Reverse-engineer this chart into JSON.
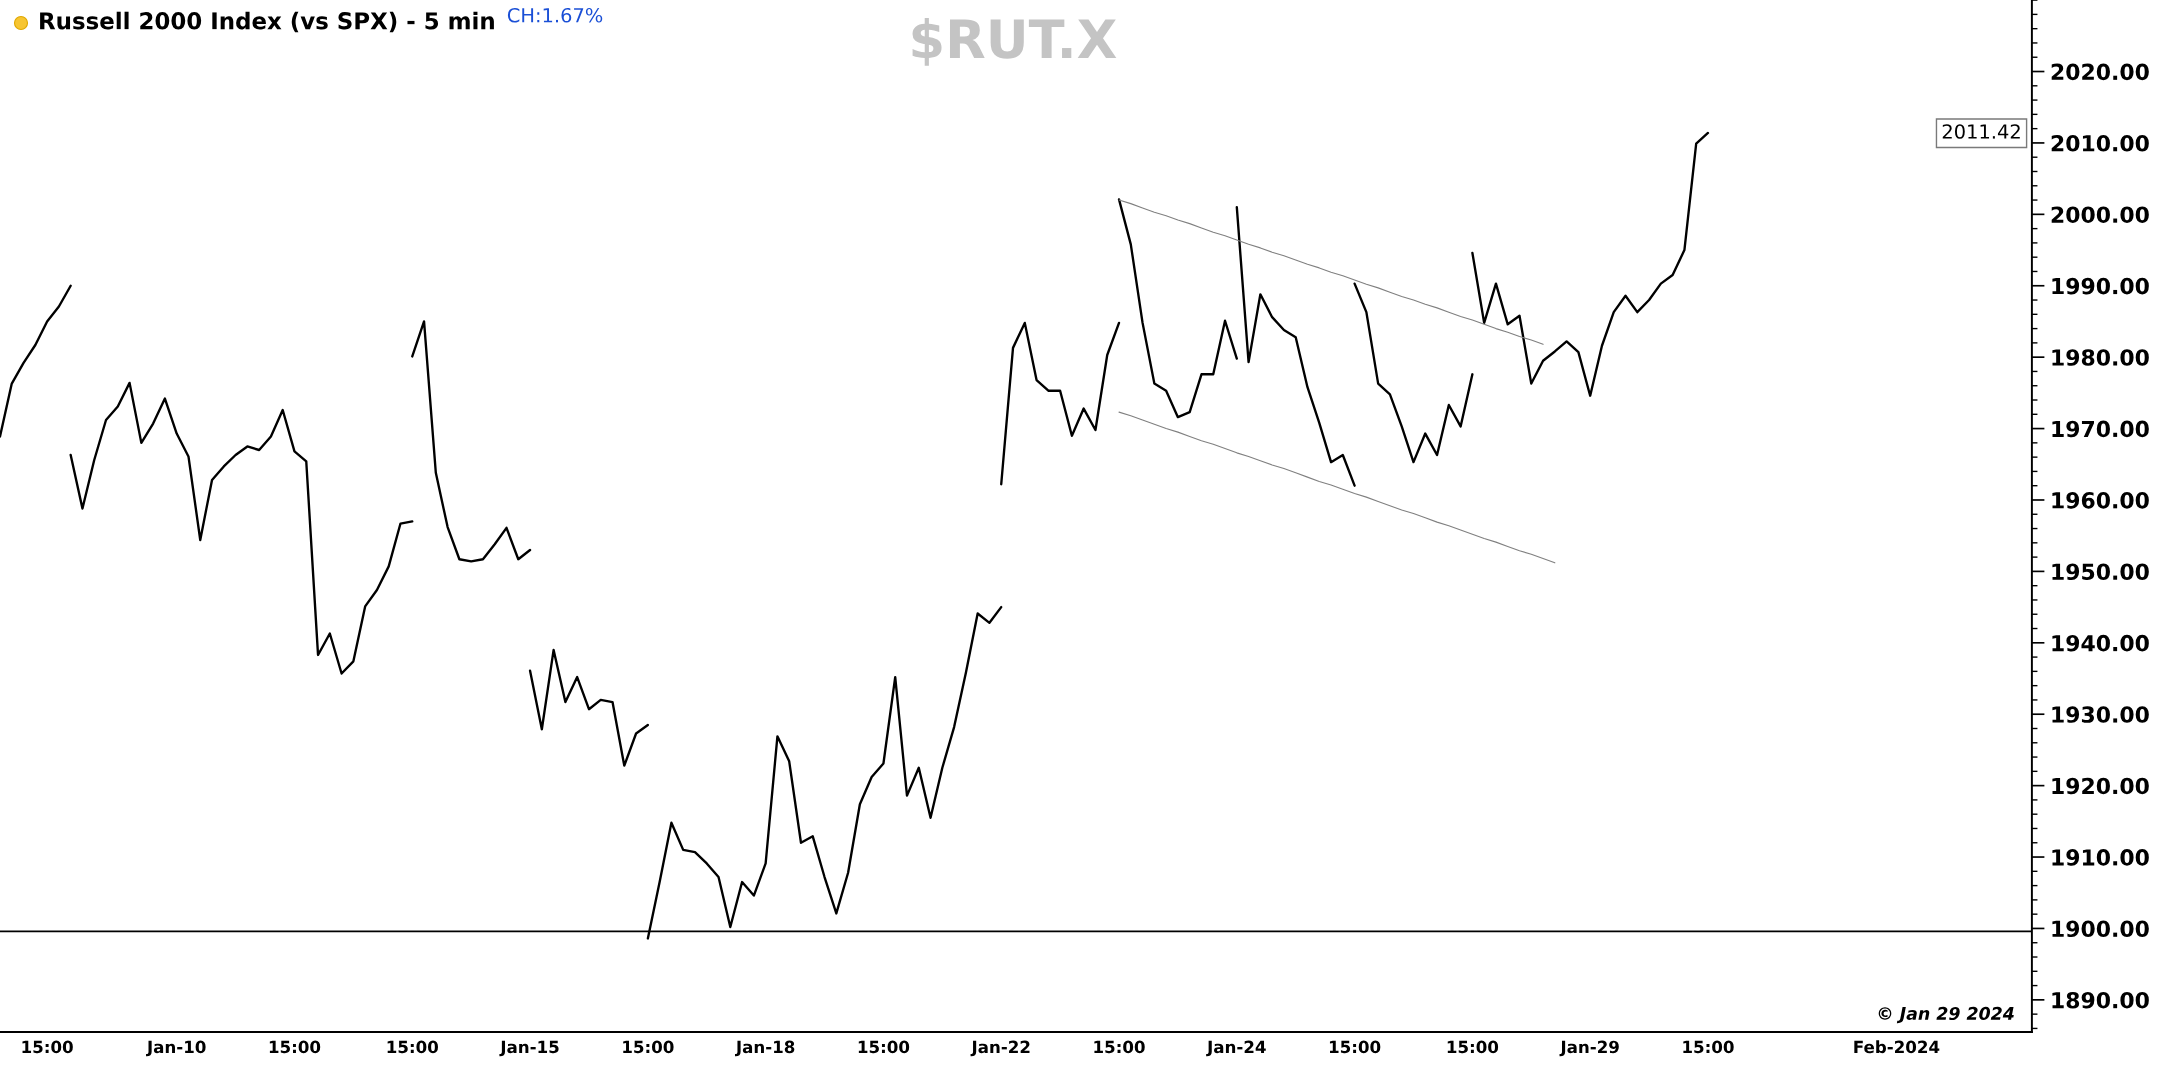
{
  "chart_data": {
    "type": "line",
    "title": "$RUT.X",
    "subtitle": "Russell 2000 Index (vs SPX) - 5 min",
    "annotations": [
      "CH:1.67%",
      "© Jan 29 2024",
      "2011.42"
    ],
    "categories": [
      null,
      null,
      null,
      null,
      "15:00",
      null,
      null,
      null,
      null,
      null,
      null,
      null,
      null,
      null,
      null,
      "Jan-10",
      null,
      null,
      null,
      null,
      null,
      null,
      null,
      null,
      null,
      "15:00",
      null,
      null,
      null,
      null,
      null,
      null,
      null,
      null,
      null,
      "15:00",
      null,
      null,
      null,
      null,
      null,
      null,
      null,
      null,
      null,
      "Jan-15",
      null,
      null,
      null,
      null,
      null,
      null,
      null,
      null,
      null,
      "15:00",
      null,
      null,
      null,
      null,
      null,
      null,
      null,
      null,
      null,
      "Jan-18",
      null,
      null,
      null,
      null,
      null,
      null,
      null,
      null,
      null,
      "15:00",
      null,
      null,
      null,
      null,
      null,
      null,
      null,
      null,
      null,
      "Jan-22",
      null,
      null,
      null,
      null,
      null,
      null,
      null,
      null,
      null,
      "15:00",
      null,
      null,
      null,
      null,
      null,
      null,
      null,
      null,
      null,
      "Jan-24",
      null,
      null,
      null,
      null,
      null,
      null,
      null,
      null,
      null,
      "15:00",
      null,
      null,
      null,
      null,
      null,
      null,
      null,
      null,
      null,
      "15:00",
      null,
      null,
      null,
      null,
      null,
      null,
      null,
      null,
      null,
      "Jan-29",
      null,
      null,
      null,
      null,
      null,
      null,
      null,
      null,
      null,
      "15:00",
      null,
      null,
      null,
      null,
      null,
      null,
      null,
      null,
      null,
      null,
      null,
      null,
      null,
      null,
      null,
      "Feb-2024",
      null,
      null,
      null,
      null,
      null,
      null,
      null,
      null,
      null,
      null,
      null
    ],
    "series": [
      {
        "color": "#000000",
        "values": [
          1968.9,
          1976.3,
          1979.2,
          1981.7,
          1985.0,
          1987.1,
          1990.0,
          null,
          null,
          null,
          null,
          null,
          null,
          null,
          null,
          null,
          null,
          null,
          null,
          null,
          null,
          null,
          null,
          null,
          null,
          null,
          null,
          null,
          null,
          null,
          null,
          null,
          null,
          null,
          null,
          1980.1,
          1985.0,
          1963.8,
          1956.2,
          1951.7,
          1951.4,
          1951.7,
          1953.8,
          1956.1,
          1951.7,
          1953.0,
          null,
          null,
          null,
          null,
          null,
          null,
          null,
          null,
          null,
          1898.6,
          1906.5,
          1914.8,
          1911.0,
          1910.7,
          1909.1,
          1907.2,
          1900.2,
          1906.5,
          1904.6,
          1909.1,
          1926.9,
          1923.4,
          1912.0,
          1912.9,
          1907.2,
          1902.1,
          1907.8,
          1917.4,
          1921.2,
          1923.1,
          1935.2,
          1918.6,
          1922.5,
          1915.5,
          1922.5,
          1928.2,
          1935.8,
          1944.1,
          1942.8,
          1945.0,
          null,
          null,
          null,
          null,
          null,
          null,
          null,
          null,
          null,
          2002.1,
          1995.8,
          1984.8,
          1976.3,
          1975.3,
          1971.6,
          1972.3,
          1977.6,
          1977.6,
          1985.1,
          1979.8,
          null,
          null,
          null,
          null,
          null,
          null,
          null,
          null,
          null,
          1990.3,
          1986.3,
          1976.3,
          1974.8,
          1970.3,
          1965.3,
          1969.3,
          1966.3,
          1973.3,
          1970.3,
          1977.6,
          null,
          null,
          null,
          null,
          null,
          null,
          null,
          null,
          null,
          null,
          null,
          null,
          null,
          null,
          null,
          null,
          null,
          null,
          null,
          null,
          null,
          null,
          null,
          null,
          null,
          null,
          null,
          null,
          null,
          null,
          null,
          null,
          null,
          null,
          null,
          null,
          null,
          null,
          null,
          null,
          null,
          null,
          null,
          null,
          null,
          null,
          null
        ]
      },
      {
        "color": "#000000",
        "values": [
          null,
          null,
          null,
          null,
          null,
          null,
          1966.3,
          1958.8,
          1965.6,
          1971.2,
          1973.1,
          1976.4,
          1968.0,
          1970.7,
          1974.2,
          1969.3,
          1966.1,
          1954.4,
          1962.8,
          1964.7,
          1966.3,
          1967.5,
          1967.0,
          1968.9,
          1972.6,
          1966.8,
          1965.4,
          1938.3,
          1941.3,
          1935.7,
          1937.4,
          1945.1,
          1947.4,
          1950.7,
          1956.7,
          1957.0,
          null,
          null,
          null,
          null,
          null,
          null,
          null,
          null,
          null,
          1936.1,
          1927.9,
          1939.0,
          1931.7,
          1935.2,
          1930.7,
          1932.0,
          1931.7,
          1922.8,
          1927.3,
          1928.5,
          null,
          null,
          null,
          null,
          null,
          null,
          null,
          null,
          null,
          null,
          null,
          null,
          null,
          null,
          null,
          null,
          null,
          null,
          null,
          null,
          null,
          null,
          null,
          null,
          null,
          null,
          null,
          null,
          null,
          1962.2,
          1981.3,
          1984.8,
          1976.8,
          1975.3,
          1975.3,
          1969.0,
          1972.8,
          1969.8,
          1980.3,
          1984.8,
          null,
          null,
          null,
          null,
          null,
          null,
          null,
          null,
          null,
          2001.0,
          1979.3,
          1988.8,
          1985.6,
          1983.8,
          1982.8,
          1975.8,
          1970.8,
          1965.3,
          1966.3,
          1962.0,
          null,
          null,
          null,
          null,
          null,
          null,
          null,
          null,
          null,
          1994.6,
          1984.8,
          1990.3,
          1984.6,
          1985.8,
          1976.3,
          1979.5,
          1980.8,
          1982.2,
          1980.7,
          1974.6,
          1981.6,
          1986.3,
          1988.6,
          1986.3,
          1988.0,
          1990.3,
          1991.5,
          1995.0,
          2009.9,
          2011.4,
          null,
          null,
          null,
          null,
          null,
          null,
          null,
          null,
          null,
          null,
          null,
          null,
          null,
          null,
          null,
          null,
          null,
          null,
          null,
          null,
          null,
          null,
          null,
          null,
          null,
          null,
          null
        ]
      },
      {
        "color": "#808080",
        "values": [
          null,
          null,
          null,
          null,
          null,
          null,
          null,
          null,
          null,
          null,
          null,
          null,
          null,
          null,
          null,
          null,
          null,
          null,
          null,
          null,
          null,
          null,
          null,
          null,
          null,
          null,
          null,
          null,
          null,
          null,
          null,
          null,
          null,
          null,
          null,
          null,
          null,
          null,
          null,
          null,
          null,
          null,
          null,
          null,
          null,
          null,
          null,
          null,
          null,
          null,
          null,
          null,
          null,
          null,
          null,
          null,
          null,
          null,
          null,
          null,
          null,
          null,
          null,
          null,
          null,
          null,
          null,
          null,
          null,
          null,
          null,
          null,
          null,
          null,
          null,
          null,
          null,
          null,
          null,
          null,
          null,
          null,
          null,
          null,
          null,
          null,
          null,
          null,
          null,
          null,
          null,
          null,
          null,
          null,
          null,
          2002.0,
          2001.5,
          2000.9,
          2000.3,
          1999.8,
          1999.2,
          1998.7,
          1998.1,
          1997.5,
          1997.0,
          1996.4,
          1995.8,
          1995.3,
          1994.7,
          1994.2,
          1993.6,
          1993.0,
          1992.5,
          1991.9,
          1991.4,
          1990.8,
          1990.2,
          1989.7,
          1989.1,
          1988.5,
          1988.0,
          1987.4,
          1986.9,
          1986.3,
          1985.7,
          1985.2,
          1984.6,
          1984.0,
          1983.5,
          1982.9,
          1982.4,
          1981.8,
          null,
          null,
          null,
          null,
          null,
          null,
          null,
          null,
          null,
          null,
          null,
          null,
          null,
          null,
          null,
          null,
          null,
          null,
          null,
          null,
          null,
          null,
          null,
          null,
          null,
          null,
          null,
          null,
          null,
          null,
          null,
          null,
          null,
          null,
          null,
          null,
          null,
          null,
          null,
          null,
          null
        ]
      },
      {
        "color": "#808080",
        "values": [
          null,
          null,
          null,
          null,
          null,
          null,
          null,
          null,
          null,
          null,
          null,
          null,
          null,
          null,
          null,
          null,
          null,
          null,
          null,
          null,
          null,
          null,
          null,
          null,
          null,
          null,
          null,
          null,
          null,
          null,
          null,
          null,
          null,
          null,
          null,
          null,
          null,
          null,
          null,
          null,
          null,
          null,
          null,
          null,
          null,
          null,
          null,
          null,
          null,
          null,
          null,
          null,
          null,
          null,
          null,
          null,
          null,
          null,
          null,
          null,
          null,
          null,
          null,
          null,
          null,
          null,
          null,
          null,
          null,
          null,
          null,
          null,
          null,
          null,
          null,
          null,
          null,
          null,
          null,
          null,
          null,
          null,
          null,
          null,
          null,
          null,
          null,
          null,
          null,
          null,
          null,
          null,
          null,
          null,
          null,
          1972.3,
          1971.8,
          1971.2,
          1970.6,
          1970.0,
          1969.5,
          1968.9,
          1968.3,
          1967.8,
          1967.2,
          1966.6,
          1966.1,
          1965.5,
          1964.9,
          1964.4,
          1963.8,
          1963.2,
          1962.6,
          1962.1,
          1961.5,
          1960.9,
          1960.4,
          1959.8,
          1959.2,
          1958.6,
          1958.1,
          1957.5,
          1956.9,
          1956.4,
          1955.8,
          1955.2,
          1954.6,
          1954.1,
          1953.5,
          1952.9,
          1952.4,
          1951.8,
          1951.2,
          null,
          null,
          null,
          null,
          null,
          null,
          null,
          null,
          null,
          null,
          null,
          null,
          null,
          null,
          null,
          null,
          null,
          null,
          null,
          null,
          null,
          null,
          null,
          null,
          null,
          null,
          null,
          null,
          null,
          null,
          null,
          null,
          null,
          null,
          null,
          null,
          null,
          null,
          null,
          null
        ]
      }
    ],
    "ylim": [
      1885.5,
      2030
    ],
    "yticks": [
      {
        "value": 1890,
        "label": "1890.00"
      },
      {
        "value": 1900,
        "label": "1900.00"
      },
      {
        "value": 1910,
        "label": "1910.00"
      },
      {
        "value": 1920,
        "label": "1920.00"
      },
      {
        "value": 1930,
        "label": "1930.00"
      },
      {
        "value": 1940,
        "label": "1940.00"
      },
      {
        "value": 1950,
        "label": "1950.00"
      },
      {
        "value": 1960,
        "label": "1960.00"
      },
      {
        "value": 1970,
        "label": "1970.00"
      },
      {
        "value": 1980,
        "label": "1980.00"
      },
      {
        "value": 1990,
        "label": "1990.00"
      },
      {
        "value": 2000,
        "label": "2000.00"
      },
      {
        "value": 2010,
        "label": "2010.00"
      },
      {
        "value": 2020,
        "label": "2020.00"
      }
    ],
    "ref_lines": [
      {
        "axis": "y",
        "value": 1899.6,
        "color": "#000000"
      }
    ]
  }
}
